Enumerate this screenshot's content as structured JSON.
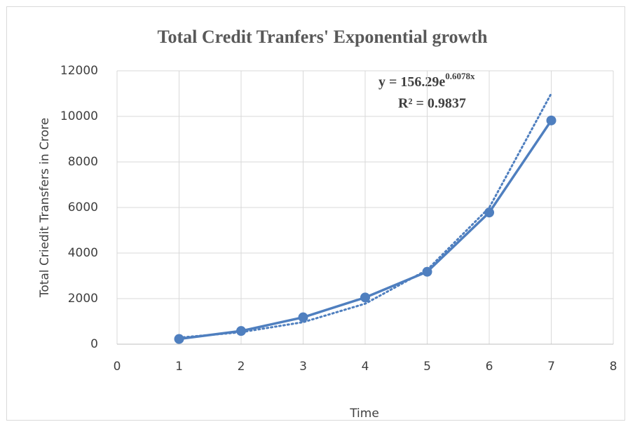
{
  "chart_data": {
    "type": "line",
    "title": "Total Credit Tranfers' Exponential growth",
    "xlabel": "Time",
    "ylabel": "Total Criedit Transfers in Crore",
    "x": [
      1,
      2,
      3,
      4,
      5,
      6,
      7
    ],
    "series": [
      {
        "color": "#4f7fbf",
        "values": [
          230,
          580,
          1180,
          2050,
          3180,
          5780,
          9820
        ]
      }
    ],
    "trendline": {
      "type": "exponential",
      "color": "#4f7fbf",
      "values": [
        287,
        527,
        967,
        1777,
        3263,
        5992,
        11003
      ]
    },
    "equation": {
      "base": "y = 156.29e",
      "exponent": "0.6078x"
    },
    "r_squared": "R² = 0.9837",
    "xlim": [
      0,
      8
    ],
    "xticks": [
      0,
      1,
      2,
      3,
      4,
      5,
      6,
      7,
      8
    ],
    "ylim": [
      0,
      12000
    ],
    "yticks": [
      0,
      2000,
      4000,
      6000,
      8000,
      10000,
      12000
    ],
    "grid": true
  }
}
